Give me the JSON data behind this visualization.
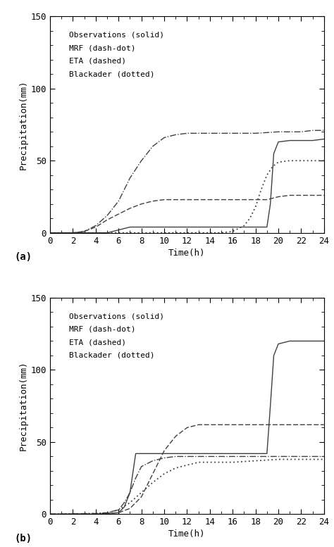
{
  "panel_a": {
    "obs_x": [
      0,
      1,
      2,
      3,
      4,
      5,
      5.5,
      6,
      6.5,
      7,
      16,
      18,
      19,
      19.3,
      19.6,
      20,
      21,
      22,
      23,
      24
    ],
    "obs_y": [
      0,
      0,
      0,
      0,
      0,
      0,
      1,
      2,
      3,
      4,
      4,
      4,
      4,
      20,
      55,
      63,
      64,
      64,
      64,
      65
    ],
    "mrf_x": [
      0,
      2,
      3,
      4,
      5,
      6,
      7,
      8,
      9,
      10,
      11,
      12,
      14,
      16,
      18,
      20,
      21,
      22,
      23,
      24
    ],
    "mrf_y": [
      0,
      0,
      1,
      5,
      12,
      22,
      38,
      50,
      60,
      66,
      68,
      69,
      69,
      69,
      69,
      70,
      70,
      70,
      71,
      71
    ],
    "eta_x": [
      0,
      2,
      3,
      4,
      5,
      6,
      7,
      8,
      9,
      10,
      11,
      14,
      18,
      19,
      19.5,
      20,
      21,
      22,
      24
    ],
    "eta_y": [
      0,
      0,
      1,
      4,
      9,
      13,
      17,
      20,
      22,
      23,
      23,
      23,
      23,
      23,
      24,
      25,
      26,
      26,
      26
    ],
    "blk_x": [
      0,
      14,
      15,
      16,
      17,
      17.5,
      18,
      18.5,
      19,
      19.5,
      20,
      21,
      22,
      23,
      24
    ],
    "blk_y": [
      0,
      0,
      0,
      1,
      5,
      10,
      18,
      30,
      40,
      46,
      49,
      50,
      50,
      50,
      50
    ],
    "ylim": [
      0,
      150
    ],
    "xlim": [
      0,
      24
    ],
    "xticks": [
      0,
      2,
      4,
      6,
      8,
      10,
      12,
      14,
      16,
      18,
      20,
      22,
      24
    ],
    "yticks": [
      0,
      50,
      100,
      150
    ],
    "xlabel": "Time(h)",
    "ylabel": "Precipitation(mm)"
  },
  "panel_b": {
    "obs_x": [
      0,
      2,
      4,
      5,
      6,
      6.5,
      7,
      7.5,
      16,
      18,
      19,
      19.3,
      19.6,
      20,
      21,
      22,
      23,
      24
    ],
    "obs_y": [
      0,
      0,
      0,
      0.5,
      1,
      5,
      15,
      42,
      42,
      42,
      42,
      75,
      110,
      118,
      120,
      120,
      120,
      120
    ],
    "mrf_x": [
      0,
      4,
      5,
      6,
      6.5,
      7,
      7.5,
      8,
      9,
      10,
      11,
      12,
      14,
      18,
      20,
      22,
      24
    ],
    "mrf_y": [
      0,
      0.5,
      1,
      3,
      8,
      15,
      25,
      33,
      37,
      39,
      40,
      40,
      40,
      40,
      40,
      40,
      40
    ],
    "eta_x": [
      0,
      4,
      5,
      6,
      7,
      8,
      9,
      10,
      11,
      12,
      13,
      14,
      16,
      18,
      20,
      22,
      24
    ],
    "eta_y": [
      0,
      0,
      0.5,
      1,
      4,
      12,
      28,
      44,
      54,
      60,
      62,
      62,
      62,
      62,
      62,
      62,
      62
    ],
    "blk_x": [
      0,
      4,
      5,
      6,
      7,
      8,
      9,
      10,
      11,
      12,
      13,
      14,
      16,
      18,
      20,
      22,
      24
    ],
    "blk_y": [
      0,
      0.5,
      1,
      3,
      8,
      15,
      22,
      28,
      32,
      34,
      36,
      36,
      36,
      37,
      38,
      38,
      38
    ],
    "ylim": [
      0,
      150
    ],
    "xlim": [
      0,
      24
    ],
    "xticks": [
      0,
      2,
      4,
      6,
      8,
      10,
      12,
      14,
      16,
      18,
      20,
      22,
      24
    ],
    "yticks": [
      0,
      50,
      100,
      150
    ],
    "xlabel": "Time(h)",
    "ylabel": "Precipitation(mm)"
  },
  "line_color": "#404040",
  "legend_text": [
    "Observations (solid)",
    "MRF (dash-dot)",
    "ETA (dashed)",
    "Blackader (dotted)"
  ],
  "legend_fontsize": 8,
  "axis_fontsize": 9,
  "tick_fontsize": 9,
  "panel_labels": [
    "(a)",
    "(b)"
  ]
}
